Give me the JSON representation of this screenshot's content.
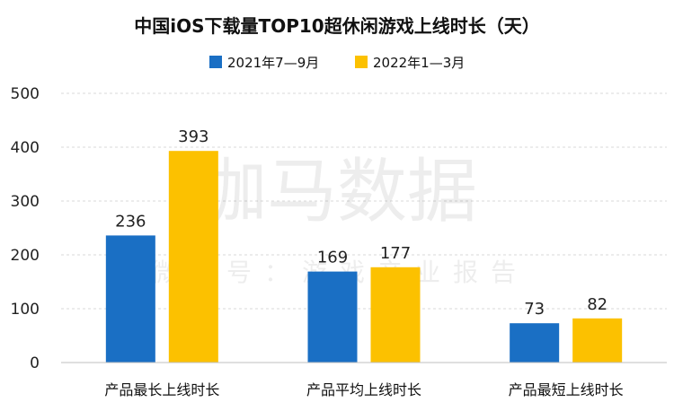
{
  "chart_data": {
    "type": "bar",
    "title": "中国iOS下载量TOP10超休闲游戏上线时长（天）",
    "categories": [
      "产品最长上线时长",
      "产品平均上线时长",
      "产品最短上线时长"
    ],
    "series": [
      {
        "name": "2021年7—9月",
        "values": [
          236,
          169,
          73
        ],
        "color": "#1a6fc4"
      },
      {
        "name": "2022年1—3月",
        "values": [
          393,
          177,
          82
        ],
        "color": "#fcc100"
      }
    ],
    "ylim": [
      0,
      500
    ],
    "yticks": [
      0,
      100,
      200,
      300,
      400,
      500
    ],
    "xlabel": "",
    "ylabel": "",
    "grid": true,
    "legend_position": "top-center"
  },
  "watermark": {
    "main": "伽马数据",
    "sub": "微信号：游戏产业报告"
  }
}
